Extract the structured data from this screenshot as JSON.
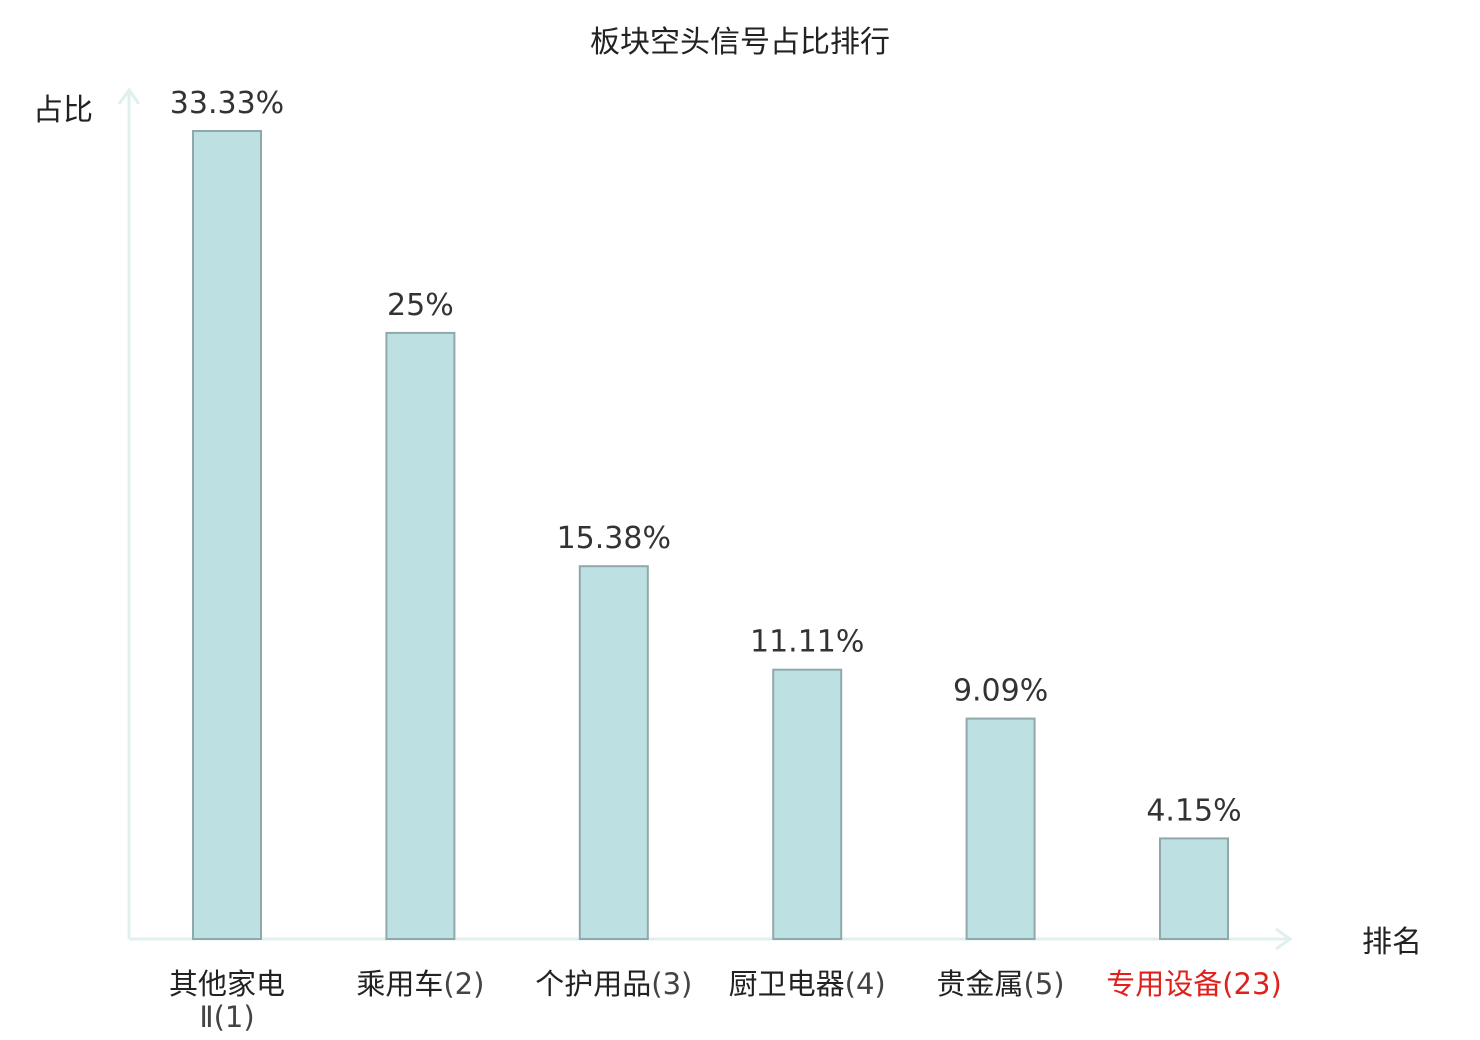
{
  "chart_data": {
    "type": "bar",
    "title": "板块空头信号占比排行",
    "ylabel": "占比",
    "xlabel": "排名",
    "ylim": [
      0,
      35
    ],
    "grid": false,
    "legend": "none",
    "categories": [
      {
        "name": "其他家电",
        "name_line2": "Ⅱ",
        "rank": "(1)",
        "highlight": false
      },
      {
        "name": "乘用车",
        "name_line2": "",
        "rank": "(2)",
        "highlight": false
      },
      {
        "name": "个护用品",
        "name_line2": "",
        "rank": "(3)",
        "highlight": false
      },
      {
        "name": "厨卫电器",
        "name_line2": "",
        "rank": "(4)",
        "highlight": false
      },
      {
        "name": "贵金属",
        "name_line2": "",
        "rank": "(5)",
        "highlight": false
      },
      {
        "name": "专用设备",
        "name_line2": "",
        "rank": "(23)",
        "highlight": true
      }
    ],
    "values": [
      33.33,
      25,
      15.38,
      11.11,
      9.09,
      4.15
    ],
    "value_labels": [
      "33.33%",
      "25%",
      "15.38%",
      "11.11%",
      "9.09%",
      "4.15%"
    ],
    "colors": {
      "bar_fill": "#bde0e2",
      "bar_stroke": "#8fa9ab",
      "axis": "#dff0ee",
      "highlight_text": "#e0201c"
    }
  }
}
